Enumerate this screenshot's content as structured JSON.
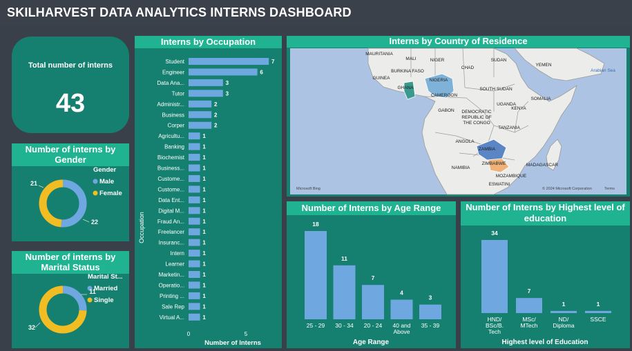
{
  "header": {
    "title": "SKILHARVEST DATA ANALYTICS INTERNS DASHBOARD"
  },
  "kpi": {
    "label": "Total number of interns",
    "value": "43"
  },
  "gender": {
    "title": "Number of interns by Gender",
    "legend_title": "Gender",
    "legend": [
      "Male",
      "Female"
    ],
    "values": [
      22,
      21
    ],
    "colors": [
      "#6fa7e0",
      "#f2bd22"
    ]
  },
  "marital": {
    "title": "Number of interns by Marital Status",
    "legend_title": "Marital St...",
    "legend": [
      "Married",
      "Single"
    ],
    "values": [
      11,
      32
    ],
    "colors": [
      "#6fa7e0",
      "#f2bd22"
    ]
  },
  "occupation": {
    "title": "Interns by Occupation",
    "ylabel": "Occupation",
    "xlabel": "Number of Interns",
    "ticks": [
      "0",
      "5"
    ]
  },
  "map": {
    "title": "Interns by Country of Residence",
    "labels": [
      "MAURITANIA",
      "MALI",
      "NIGER",
      "CHAD",
      "SUDAN",
      "YEMEN",
      "BURKINA FASO",
      "GUINEA",
      "NIGERIA",
      "GHANA",
      "Arabian Sea",
      "SOUTH SUDAN",
      "CAMEROON",
      "SOMALIA",
      "GABON",
      "UGANDA",
      "KENYA",
      "DEMOCRATIC",
      "REPUBLIC OF",
      "THE CONGO",
      "TANZANIA",
      "ANGOLA",
      "ZAMBIA",
      "ZIMBABWE",
      "MADAGASCAR",
      "NAMIBIA",
      "MOZAMBIQUE",
      "ESWATINI"
    ],
    "logo": "Microsoft Bing",
    "copyright": "© 2024 Microsoft Corporation",
    "terms": "Terms"
  },
  "age": {
    "title": "Number of Interns by Age Range",
    "xlabel": "Age Range"
  },
  "education": {
    "title": "Number of Interns by Highest level of education",
    "xlabel": "Highest level of Education"
  },
  "chart_data": [
    {
      "type": "bar",
      "title": "Interns by Occupation",
      "orientation": "horizontal",
      "xlabel": "Number of Interns",
      "ylabel": "Occupation",
      "categories": [
        "Student",
        "Engineer",
        "Data Ana...",
        "Tutor",
        "Administr...",
        "Business",
        "Corper",
        "Agricultu...",
        "Banking",
        "Biochemist",
        "Business...",
        "Custome...",
        "Custome...",
        "Data Ent...",
        "Digital M...",
        "Fraud An...",
        "Freelancer",
        "Insuranc...",
        "Intern",
        "Learner",
        "Marketin...",
        "Operatio...",
        "Printing ...",
        "Sale Rep",
        "Virtual A..."
      ],
      "values": [
        7,
        6,
        3,
        3,
        2,
        2,
        2,
        1,
        1,
        1,
        1,
        1,
        1,
        1,
        1,
        1,
        1,
        1,
        1,
        1,
        1,
        1,
        1,
        1,
        1
      ],
      "xlim": [
        0,
        7
      ],
      "grid": false
    },
    {
      "type": "bar",
      "title": "Number of Interns by Age Range",
      "xlabel": "Age Range",
      "categories": [
        "25 - 29",
        "30 - 34",
        "20 - 24",
        "40 and Above",
        "35 - 39"
      ],
      "values": [
        18,
        11,
        7,
        4,
        3
      ],
      "ylim": [
        0,
        18
      ],
      "grid": false
    },
    {
      "type": "bar",
      "title": "Number of Interns by Highest level of education",
      "xlabel": "Highest level of Education",
      "categories": [
        "HND/ BSc/B. Tech",
        "MSc/ MTech",
        "ND/ Diploma",
        "SSCE"
      ],
      "values": [
        34,
        7,
        1,
        1
      ],
      "ylim": [
        0,
        34
      ],
      "grid": false
    },
    {
      "type": "pie",
      "title": "Number of interns by Gender",
      "categories": [
        "Male",
        "Female"
      ],
      "values": [
        22,
        21
      ]
    },
    {
      "type": "pie",
      "title": "Number of interns by Marital Status",
      "categories": [
        "Married",
        "Single"
      ],
      "values": [
        11,
        32
      ]
    }
  ]
}
